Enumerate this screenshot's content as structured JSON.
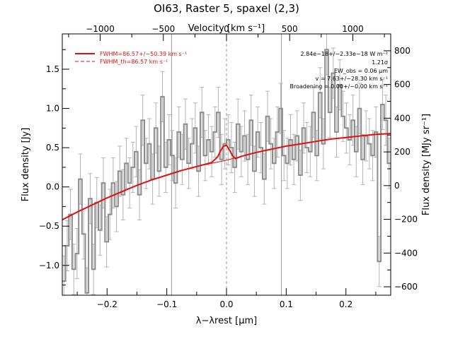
{
  "chart_data": {
    "type": "line",
    "title": "OI63, Raster 5, spaxel (2,3)",
    "xlabel": "λ−λrest [μm]",
    "ylabel_left": "Flux density [Jy]",
    "ylabel_right": "Flux density [MJy sr⁻¹]",
    "xlabel_top": "Velocity [km s⁻¹]",
    "xlim": [
      -0.275,
      0.275
    ],
    "ylim": [
      -1.38,
      1.95
    ],
    "right_ylim": [
      -650,
      900
    ],
    "top_xlim": [
      -1300,
      1300
    ],
    "x_ticks": [
      -0.2,
      -0.1,
      0.0,
      0.1,
      0.2
    ],
    "x_tick_labels": [
      "−0.2",
      "−0.1",
      "0.0",
      "0.1",
      "0.2"
    ],
    "y_ticks": [
      -1.0,
      -0.5,
      0.0,
      0.5,
      1.0,
      1.5
    ],
    "y_tick_labels": [
      "−1.0",
      "−0.5",
      "0.0",
      "0.5",
      "1.0",
      "1.5"
    ],
    "right_y_ticks": [
      -600,
      -400,
      -200,
      0,
      200,
      400,
      600,
      800
    ],
    "right_y_tick_labels": [
      "−600",
      "−400",
      "−200",
      "0",
      "200",
      "400",
      "600",
      "800"
    ],
    "top_x_ticks": [
      -1000,
      -500,
      0,
      500,
      1000
    ],
    "top_x_tick_labels": [
      "−1000",
      "−500",
      "0",
      "500",
      "1000"
    ],
    "vertical_lines": [
      -0.092,
      0.0,
      0.092
    ],
    "legend": [
      {
        "label": "FWHM=86.57+/−50.39 km s⁻¹",
        "style": "solid",
        "color": "#e01010"
      },
      {
        "label": "FWHM_th=86.57 km s⁻¹",
        "style": "dashed",
        "color": "#e01010"
      }
    ],
    "annotations": [
      "2.84e−18+/−2.33e−18 W m⁻²",
      "1.21σ",
      "EW_obs = 0.06 μm",
      "v = 7.63+/−28.30 km s⁻¹",
      "Broadening = 0.00+/−0.00 km s⁻¹"
    ],
    "legend_position": "top-left",
    "annotation_position": "top-right",
    "colors": {
      "data": "#8c8c8c",
      "error": "#b4b4b4",
      "fit": "#e01010",
      "gridline": "#999999"
    },
    "series": [
      {
        "name": "spectrum",
        "style": "step",
        "x": [
          -0.275,
          -0.2695,
          -0.264,
          -0.2585,
          -0.253,
          -0.2475,
          -0.242,
          -0.2365,
          -0.231,
          -0.2255,
          -0.22,
          -0.2145,
          -0.209,
          -0.2035,
          -0.198,
          -0.1925,
          -0.187,
          -0.1815,
          -0.176,
          -0.1705,
          -0.165,
          -0.1595,
          -0.154,
          -0.1485,
          -0.143,
          -0.1375,
          -0.132,
          -0.1265,
          -0.121,
          -0.1155,
          -0.11,
          -0.1045,
          -0.099,
          -0.0935,
          -0.088,
          -0.0825,
          -0.077,
          -0.0715,
          -0.066,
          -0.0605,
          -0.055,
          -0.0495,
          -0.044,
          -0.0385,
          -0.033,
          -0.0275,
          -0.022,
          -0.0165,
          -0.011,
          -0.0055,
          0.0,
          0.0055,
          0.011,
          0.0165,
          0.022,
          0.0275,
          0.033,
          0.0385,
          0.044,
          0.0495,
          0.055,
          0.0605,
          0.066,
          0.0715,
          0.077,
          0.0825,
          0.088,
          0.0935,
          0.099,
          0.1045,
          0.11,
          0.1155,
          0.121,
          0.1265,
          0.132,
          0.1375,
          0.143,
          0.1485,
          0.154,
          0.1595,
          0.165,
          0.1705,
          0.176,
          0.1815,
          0.187,
          0.1925,
          0.198,
          0.2035,
          0.209,
          0.2145,
          0.22,
          0.2255,
          0.231,
          0.2365,
          0.242,
          0.2475,
          0.253,
          0.2585,
          0.264,
          0.2695
        ],
        "y": [
          -1.2,
          -0.75,
          -0.35,
          -1.05,
          -0.85,
          0.1,
          -0.6,
          -1.35,
          -0.15,
          -1.05,
          -0.2,
          -0.55,
          0.05,
          -0.7,
          -0.35,
          0.05,
          -0.25,
          0.2,
          -0.1,
          0.3,
          0.05,
          0.25,
          0.45,
          -0.1,
          0.85,
          0.3,
          0.55,
          0.1,
          0.75,
          0.2,
          1.15,
          0.25,
          0.6,
          0.4,
          0.05,
          0.7,
          0.35,
          0.8,
          0.3,
          0.55,
          0.75,
          0.2,
          0.95,
          0.4,
          0.6,
          0.45,
          0.7,
          0.95,
          0.35,
          0.55,
          0.6,
          0.5,
          0.25,
          0.8,
          0.45,
          0.65,
          0.35,
          0.85,
          0.2,
          0.7,
          0.5,
          0.1,
          0.9,
          0.55,
          0.3,
          0.7,
          1.0,
          0.4,
          0.3,
          0.6,
          0.35,
          0.65,
          0.15,
          0.75,
          0.5,
          0.45,
          0.95,
          0.4,
          1.2,
          0.55,
          1.75,
          0.95,
          1.45,
          0.7,
          1.3,
          0.9,
          0.75,
          0.6,
          0.85,
          0.45,
          1.0,
          0.35,
          0.65,
          0.55,
          0.4,
          0.7,
          -0.95,
          1.05,
          0.85,
          0.3
        ],
        "yerr": 0.32
      },
      {
        "name": "fit",
        "style": "solid",
        "x": [
          -0.275,
          -0.25,
          -0.225,
          -0.2,
          -0.175,
          -0.15,
          -0.125,
          -0.1,
          -0.075,
          -0.05,
          -0.025,
          -0.015,
          -0.01,
          -0.005,
          0.0,
          0.005,
          0.01,
          0.015,
          0.025,
          0.05,
          0.075,
          0.1,
          0.125,
          0.15,
          0.175,
          0.2,
          0.225,
          0.25,
          0.275
        ],
        "y": [
          -0.42,
          -0.32,
          -0.23,
          -0.14,
          -0.06,
          0.02,
          0.09,
          0.15,
          0.21,
          0.26,
          0.31,
          0.38,
          0.46,
          0.52,
          0.53,
          0.47,
          0.4,
          0.36,
          0.39,
          0.44,
          0.48,
          0.52,
          0.55,
          0.58,
          0.61,
          0.63,
          0.65,
          0.67,
          0.68
        ]
      },
      {
        "name": "continuum",
        "style": "thin",
        "x": [
          -0.05,
          -0.025,
          0.0,
          0.025,
          0.05
        ],
        "y": [
          0.26,
          0.3,
          0.34,
          0.39,
          0.44
        ]
      }
    ]
  }
}
